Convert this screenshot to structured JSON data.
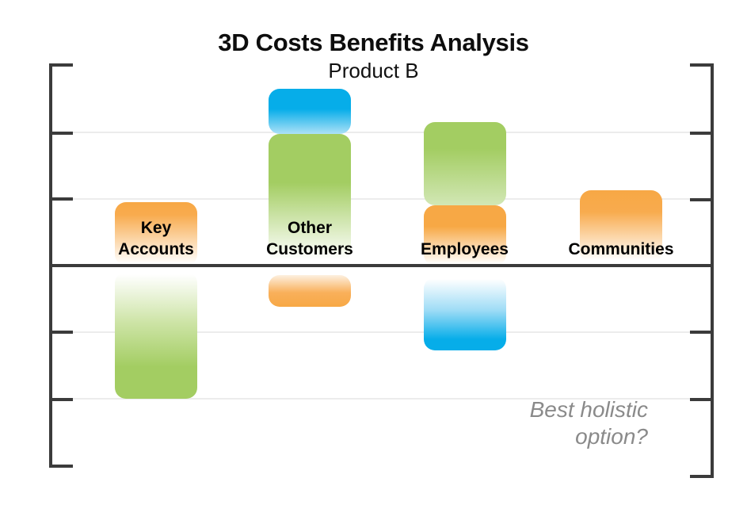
{
  "page": {
    "background": "#ffffff"
  },
  "chart_data": {
    "type": "bar",
    "variant": "floating stacked cost-benefit bars around a zero line",
    "title": "3D Costs Benefits Analysis",
    "subtitle": "Product B",
    "categories": [
      "Key Accounts",
      "Other Customers",
      "Employees",
      "Communities"
    ],
    "xlabel": "",
    "ylabel": "",
    "ylim": [
      -3,
      3
    ],
    "y_axis": {
      "tick_step": 1,
      "numeric_labels_shown": false,
      "zero_line": true,
      "units_note": "y-axis has unlabeled ticks; segment values are in gridline units (1 unit = one tick interval); positive = benefit, negative = cost"
    },
    "grid": {
      "horizontal": true,
      "gridline_units": [
        2,
        1,
        -1,
        -2
      ]
    },
    "legend_position": "none",
    "palette": {
      "blue": "#06ade9",
      "green": "#a3cd62",
      "orange": "#f7a845",
      "axis": "#3b3b3b",
      "gridline": "#ececec",
      "annotation_gray": "#8a8a8a"
    },
    "columns": [
      {
        "label": "Key Accounts",
        "label_lines": [
          "Key",
          "Accounts"
        ],
        "segments": [
          {
            "name": "orange-benefit",
            "color": "#f7a845",
            "lo": 0.0,
            "hi": 0.95,
            "stops": [
              [
                "#f7a845",
                0
              ],
              [
                "#f8ab4e",
                0.2
              ],
              [
                "#ffffff",
                0.97
              ]
            ]
          },
          {
            "name": "green-cost",
            "color": "#a3cd62",
            "lo": -2.0,
            "hi": -0.1,
            "stops": [
              [
                "#ffffff",
                0.02
              ],
              [
                "#cde4a6",
                0.4
              ],
              [
                "#a3cd62",
                0.75
              ],
              [
                "#a3cd62",
                1
              ]
            ]
          }
        ]
      },
      {
        "label": "Other Customers",
        "label_lines": [
          "Other",
          "Customers"
        ],
        "segments": [
          {
            "name": "blue-benefit",
            "color": "#06ade9",
            "lo": 1.98,
            "hi": 2.66,
            "stops": [
              [
                "#06ade9",
                0
              ],
              [
                "#06ade9",
                0.45
              ],
              [
                "#ace1f7",
                1
              ]
            ]
          },
          {
            "name": "green-benefit",
            "color": "#a3cd62",
            "lo": 0.05,
            "hi": 1.98,
            "stops": [
              [
                "#a3cd62",
                0
              ],
              [
                "#a3cd62",
                0.38
              ],
              [
                "#ffffff",
                0.98
              ]
            ]
          },
          {
            "name": "orange-cost",
            "color": "#f7a845",
            "lo": -0.62,
            "hi": -0.14,
            "stops": [
              [
                "#fdf0e0",
                0
              ],
              [
                "#f9b05b",
                0.55
              ],
              [
                "#f7a845",
                1
              ]
            ]
          }
        ]
      },
      {
        "label": "Employees",
        "label_lines": [
          "Employees"
        ],
        "segments": [
          {
            "name": "green-benefit",
            "color": "#a3cd62",
            "lo": 0.9,
            "hi": 2.15,
            "stops": [
              [
                "#a3cd62",
                0
              ],
              [
                "#a3cd62",
                0.32
              ],
              [
                "#d2e7b5",
                1
              ]
            ]
          },
          {
            "name": "orange-benefit",
            "color": "#f7a845",
            "lo": 0.0,
            "hi": 0.9,
            "stops": [
              [
                "#f7a845",
                0
              ],
              [
                "#f7a845",
                0.35
              ],
              [
                "#ffffff",
                0.97
              ]
            ]
          },
          {
            "name": "blue-cost",
            "color": "#06ade9",
            "lo": -1.27,
            "hi": -0.18,
            "stops": [
              [
                "#ffffff",
                0.02
              ],
              [
                "#9edcf6",
                0.45
              ],
              [
                "#06ade9",
                0.85
              ],
              [
                "#06ade9",
                1
              ]
            ]
          }
        ]
      },
      {
        "label": "Communities",
        "label_lines": [
          "Communities"
        ],
        "segments": [
          {
            "name": "orange-benefit",
            "color": "#f7a845",
            "lo": 0.05,
            "hi": 1.13,
            "stops": [
              [
                "#f7a845",
                0
              ],
              [
                "#f8ab4e",
                0.3
              ],
              [
                "#ffffff",
                0.97
              ]
            ]
          }
        ]
      }
    ],
    "annotation": {
      "lines": [
        "Best holistic",
        "option?"
      ],
      "color": "#8a8a8a",
      "style": "italic",
      "position": "bottom-right"
    }
  }
}
